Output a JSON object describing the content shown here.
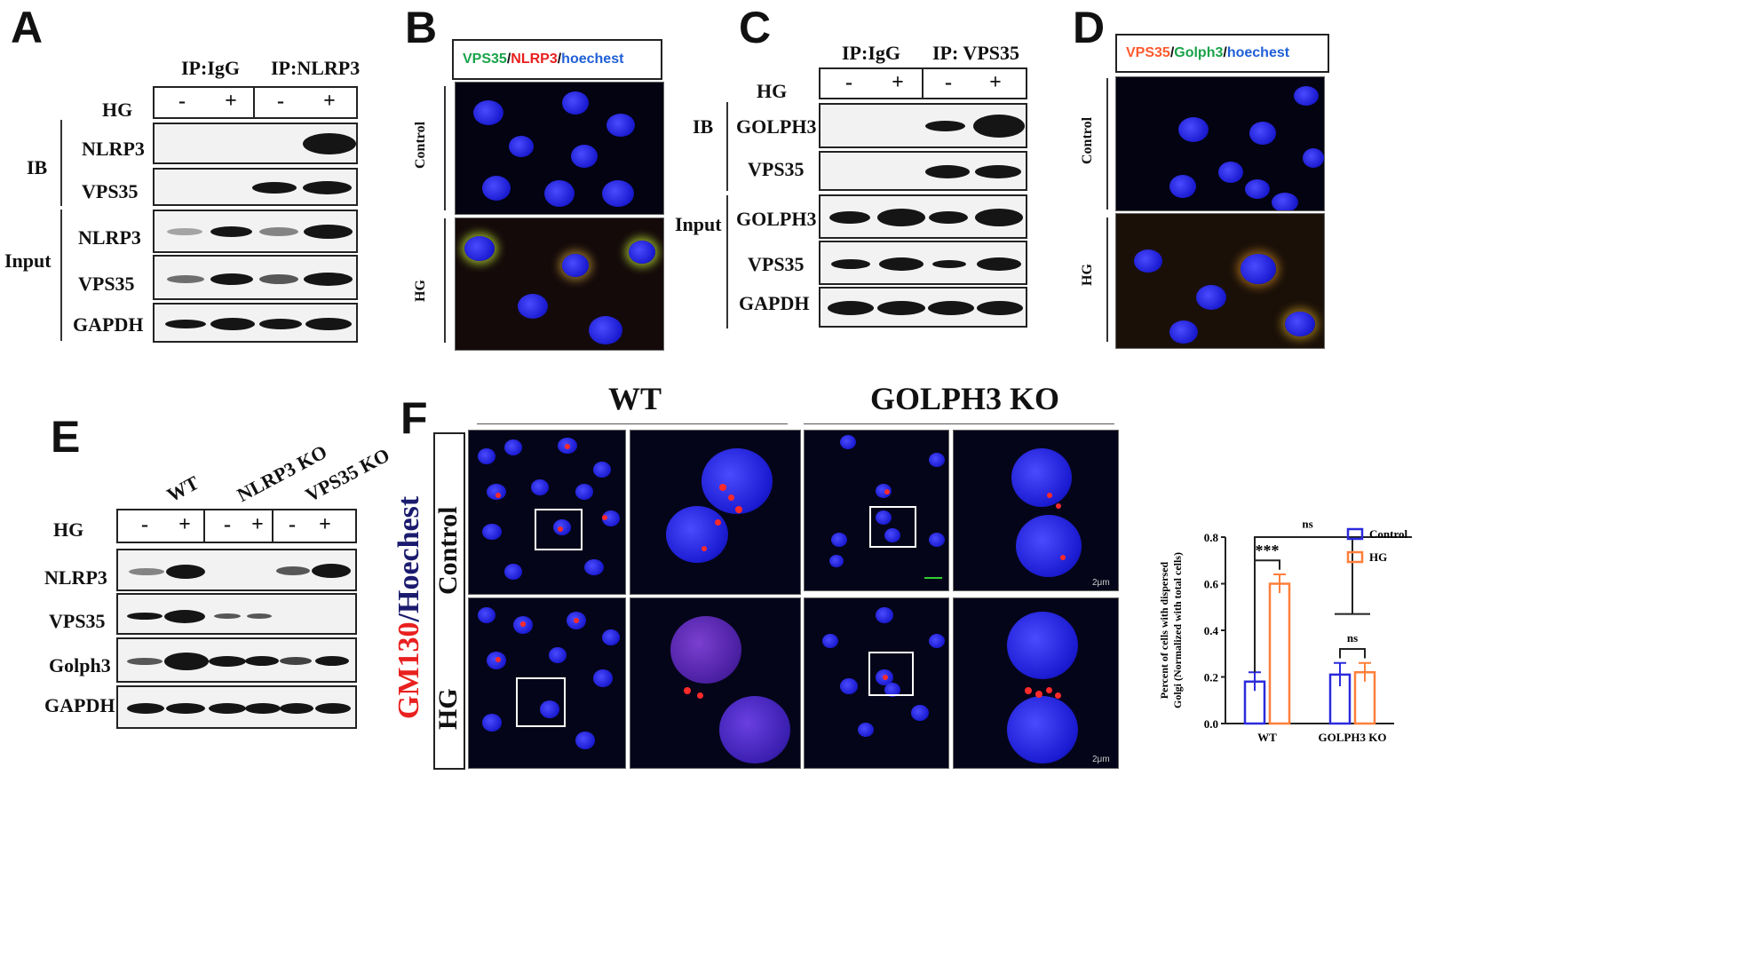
{
  "panels": {
    "A": "A",
    "B": "B",
    "C": "C",
    "D": "D",
    "E": "E",
    "F": "F"
  },
  "panelA": {
    "ip_igg": "IP:IgG",
    "ip_nlrp3": "IP:NLRP3",
    "hg": "HG",
    "minus": "-",
    "plus": "+",
    "ib": "IB",
    "input": "Input",
    "rows": [
      "NLRP3",
      "VPS35",
      "NLRP3",
      "VPS35",
      "GAPDH"
    ]
  },
  "panelB": {
    "legend_vps35": "VPS35",
    "slash1": "/",
    "legend_nlrp3": "NLRP3",
    "slash2": "/",
    "legend_hoechst": "hoechest",
    "control": "Control",
    "hg": "HG"
  },
  "panelC": {
    "ip_igg": "IP:IgG",
    "ip_vps35": "IP:  VPS35",
    "hg": "HG",
    "minus": "-",
    "plus": "+",
    "ib": "IB",
    "input": "Input",
    "rows": [
      "GOLPH3",
      "VPS35",
      "GOLPH3",
      "VPS35",
      "GAPDH"
    ]
  },
  "panelD": {
    "legend_vps35": "VPS35",
    "slash1": "/",
    "legend_golph3": "Golph3",
    "slash2": "/",
    "legend_hoechst": "hoechest",
    "control": "Control",
    "hg": "HG"
  },
  "panelE": {
    "groups": [
      "WT",
      "NLRP3 KO",
      "VPS35 KO"
    ],
    "hg": "HG",
    "minus": "-",
    "plus": "+",
    "rows": [
      "NLRP3",
      "VPS35",
      "Golph3",
      "GAPDH"
    ]
  },
  "panelF": {
    "wt": "WT",
    "golph3_ko": "GOLPH3 KO",
    "stain_gm130": "GM130",
    "stain_slash": "/",
    "stain_hoechst": "Hoechest",
    "control": "Control",
    "hg": "HG",
    "scale": "2μm"
  },
  "colors": {
    "green": "#1aa34a",
    "red": "#e8201f",
    "blue": "#1f5fd6",
    "orange": "#ff7a2e",
    "control_bar": "#2b2bdc",
    "hg_bar": "#ff7f3a"
  },
  "chart_data": {
    "type": "bar",
    "categories": [
      "WT",
      "GOLPH3 KO"
    ],
    "series": [
      {
        "name": "Control",
        "values": [
          0.18,
          0.21
        ],
        "errors": [
          0.04,
          0.05
        ]
      },
      {
        "name": "HG",
        "values": [
          0.6,
          0.22
        ],
        "errors": [
          0.04,
          0.04
        ]
      }
    ],
    "ylabel": "Percent of cells with dispersed Golgi (Normalized with total cells)",
    "ylim": [
      0,
      0.8
    ],
    "yticks": [
      "0.0",
      "0.2",
      "0.4",
      "0.6",
      "0.8"
    ],
    "annotations": [
      "***",
      "ns",
      "ns"
    ],
    "legend": "top-right"
  }
}
